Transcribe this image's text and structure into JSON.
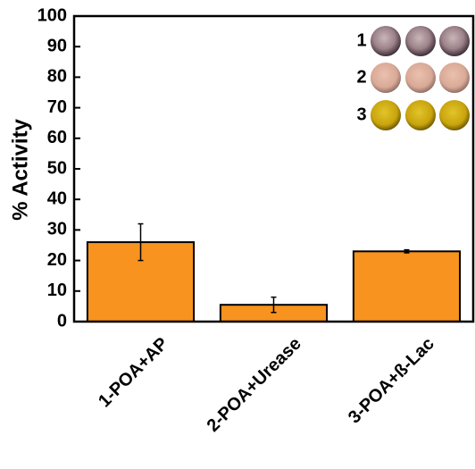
{
  "chart_data": {
    "type": "bar",
    "ylabel": "% Activity",
    "categories": [
      "1-POA+AP",
      "2-POA+Urease",
      "3-POA+ß-Lac"
    ],
    "series": [
      {
        "color": "#f7931e",
        "values": [
          26,
          5.5,
          23
        ],
        "errors": [
          6,
          2.5,
          0.5
        ]
      }
    ],
    "ylim": [
      0,
      100
    ],
    "yticks": [
      0,
      10,
      20,
      30,
      40,
      50,
      60,
      70,
      80,
      90,
      100
    ],
    "inset_labels": [
      "1",
      "2",
      "3"
    ]
  }
}
